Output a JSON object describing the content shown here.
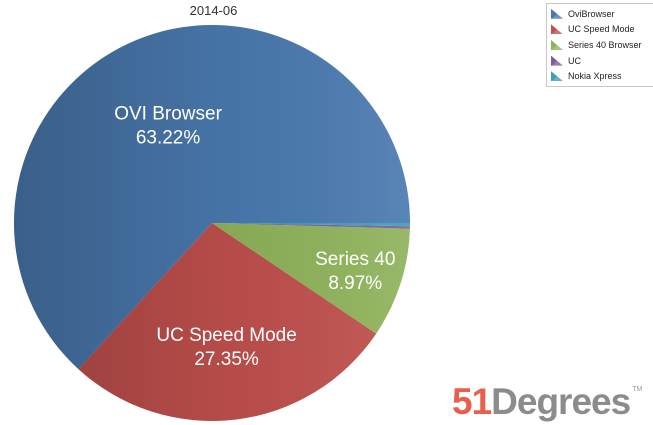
{
  "chart_data": {
    "type": "pie",
    "title": "2014-06",
    "slices": [
      {
        "legend": "OviBrowser",
        "label": "OVI Browser",
        "value_label": "63.22%",
        "value": 63.22,
        "color": "#4a7ab0"
      },
      {
        "legend": "UC Speed Mode",
        "label": "UC Speed Mode",
        "value_label": "27.35%",
        "value": 27.35,
        "color": "#c0504d"
      },
      {
        "legend": "Series 40 Browser",
        "label": "Series 40",
        "value_label": "8.97%",
        "value": 8.97,
        "color": "#8fb35a"
      },
      {
        "legend": "UC",
        "label": "",
        "value_label": "",
        "value": 0.2,
        "color": "#7b5e9f"
      },
      {
        "legend": "Nokia Xpress",
        "label": "",
        "value_label": "",
        "value": 0.26,
        "color": "#3f9fb5"
      }
    ],
    "legend_position": "top-right"
  },
  "logo": {
    "number": "51",
    "word": "Degrees",
    "tm": "TM"
  }
}
